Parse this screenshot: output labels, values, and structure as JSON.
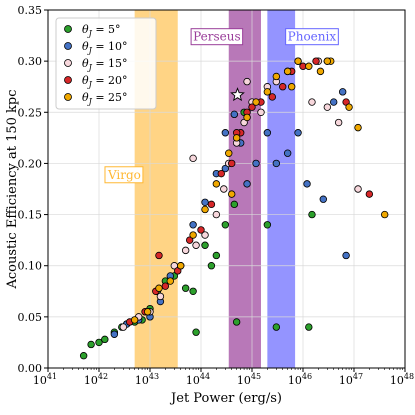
{
  "chart_data": {
    "type": "scatter",
    "xlabel": "Jet Power (erg/s)",
    "ylabel": "Acoustic Efficiency at 150 kpc",
    "x_scale": "log",
    "xlim": [
      1e+41,
      1e+48
    ],
    "ylim": [
      0.0,
      0.35
    ],
    "x_ticks": [
      {
        "value": 1e+41,
        "base": "10",
        "exp": "41"
      },
      {
        "value": 1e+42,
        "base": "10",
        "exp": "42"
      },
      {
        "value": 1e+43,
        "base": "10",
        "exp": "43"
      },
      {
        "value": 1e+44,
        "base": "10",
        "exp": "44"
      },
      {
        "value": 1e+45,
        "base": "10",
        "exp": "45"
      },
      {
        "value": 1e+46,
        "base": "10",
        "exp": "46"
      },
      {
        "value": 1e+47,
        "base": "10",
        "exp": "47"
      },
      {
        "value": 1e+48,
        "base": "10",
        "exp": "48"
      }
    ],
    "y_ticks": [
      {
        "value": 0.0,
        "label": "0.00"
      },
      {
        "value": 0.05,
        "label": "0.05"
      },
      {
        "value": 0.1,
        "label": "0.10"
      },
      {
        "value": 0.15,
        "label": "0.15"
      },
      {
        "value": 0.2,
        "label": "0.20"
      },
      {
        "value": 0.25,
        "label": "0.25"
      },
      {
        "value": 0.3,
        "label": "0.30"
      },
      {
        "value": 0.35,
        "label": "0.35"
      }
    ],
    "grid": true,
    "legend_position": "top-left",
    "bands": [
      {
        "name": "Virgo",
        "x_range": [
          5e+42,
          3.5e+43
        ],
        "color": "#ffb833",
        "opacity": 0.6,
        "label_x": 1.5e+42,
        "label_y": 0.185
      },
      {
        "name": "Perseus",
        "x_range": [
          3.5e+44,
          1.5e+45
        ],
        "color": "#9a3e9a",
        "opacity": 0.7,
        "label_x": 7e+43,
        "label_y": 0.32
      },
      {
        "name": "Phoenix",
        "x_range": [
          2e+45,
          7e+45
        ],
        "color": "#6666ff",
        "opacity": 0.7,
        "label_x": 5e+45,
        "label_y": 0.32
      }
    ],
    "star_marker": {
      "x": 5.2e+44,
      "y": 0.267
    },
    "series": [
      {
        "name": "θ_J = 5°",
        "label_text": "J",
        "label_sub": "= 5°",
        "color": "#2ca02c",
        "points": [
          [
            5e+41,
            0.012
          ],
          [
            7e+41,
            0.023
          ],
          [
            1e+42,
            0.025
          ],
          [
            1.3e+42,
            0.028
          ],
          [
            2e+42,
            0.035
          ],
          [
            2.8e+42,
            0.04
          ],
          [
            3.5e+42,
            0.043
          ],
          [
            5e+42,
            0.045
          ],
          [
            7e+42,
            0.047
          ],
          [
            1e+43,
            0.058
          ],
          [
            1.4e+43,
            0.075
          ],
          [
            2e+43,
            0.085
          ],
          [
            3e+43,
            0.09
          ],
          [
            5e+43,
            0.078
          ],
          [
            7e+43,
            0.075
          ],
          [
            1.2e+44,
            0.12
          ],
          [
            1.6e+44,
            0.1
          ],
          [
            2e+44,
            0.11
          ],
          [
            3e+44,
            0.14
          ],
          [
            4.5e+44,
            0.16
          ],
          [
            5e+44,
            0.045
          ],
          [
            7e+44,
            0.25
          ],
          [
            2e+45,
            0.14
          ],
          [
            3e+45,
            0.04
          ],
          [
            1.3e+46,
            0.04
          ],
          [
            1.5e+46,
            0.15
          ],
          [
            8e+43,
            0.035
          ]
        ]
      },
      {
        "name": "θ_J = 10°",
        "label_text": "J",
        "label_sub": "= 10°",
        "color": "#4472c4",
        "points": [
          [
            2e+42,
            0.033
          ],
          [
            3.5e+42,
            0.043
          ],
          [
            6e+42,
            0.047
          ],
          [
            1e+43,
            0.05
          ],
          [
            1.6e+43,
            0.065
          ],
          [
            2.5e+43,
            0.09
          ],
          [
            4e+43,
            0.1
          ],
          [
            7e+43,
            0.14
          ],
          [
            1.2e+44,
            0.162
          ],
          [
            2e+44,
            0.19
          ],
          [
            3e+44,
            0.23
          ],
          [
            4.5e+44,
            0.248
          ],
          [
            6e+44,
            0.22
          ],
          [
            8e+44,
            0.18
          ],
          [
            1.2e+45,
            0.2
          ],
          [
            2e+45,
            0.23
          ],
          [
            3e+45,
            0.2
          ],
          [
            5e+45,
            0.21
          ],
          [
            8e+45,
            0.23
          ],
          [
            1.2e+46,
            0.18
          ],
          [
            2.5e+46,
            0.165
          ],
          [
            4e+46,
            0.26
          ],
          [
            6e+46,
            0.27
          ],
          [
            3e+44,
            0.195
          ],
          [
            7e+46,
            0.11
          ]
        ]
      },
      {
        "name": "θ_J = 15°",
        "label_text": "J",
        "label_sub": "= 15°",
        "color": "#f7d7dc",
        "points": [
          [
            3e+42,
            0.04
          ],
          [
            6e+42,
            0.05
          ],
          [
            1e+43,
            0.055
          ],
          [
            1.6e+43,
            0.07
          ],
          [
            3e+43,
            0.1
          ],
          [
            5e+43,
            0.115
          ],
          [
            8e+43,
            0.12
          ],
          [
            1.2e+44,
            0.13
          ],
          [
            2e+44,
            0.15
          ],
          [
            2.8e+44,
            0.175
          ],
          [
            3.5e+44,
            0.2
          ],
          [
            5e+44,
            0.22
          ],
          [
            7e+44,
            0.24
          ],
          [
            1e+45,
            0.26
          ],
          [
            1.5e+45,
            0.25
          ],
          [
            2e+45,
            0.275
          ],
          [
            3e+45,
            0.28
          ],
          [
            5e+45,
            0.29
          ],
          [
            8e+45,
            0.3
          ],
          [
            1.5e+46,
            0.26
          ],
          [
            2e+46,
            0.3
          ],
          [
            3e+46,
            0.255
          ],
          [
            5e+46,
            0.24
          ],
          [
            1.2e+47,
            0.175
          ],
          [
            7e+43,
            0.205
          ],
          [
            8e+44,
            0.28
          ]
        ]
      },
      {
        "name": "θ_J = 20°",
        "label_text": "J",
        "label_sub": "= 20°",
        "color": "#d62728",
        "points": [
          [
            4e+42,
            0.045
          ],
          [
            8e+42,
            0.055
          ],
          [
            1.3e+43,
            0.075
          ],
          [
            2e+43,
            0.08
          ],
          [
            3.5e+43,
            0.095
          ],
          [
            6e+43,
            0.125
          ],
          [
            1e+44,
            0.135
          ],
          [
            1.6e+44,
            0.16
          ],
          [
            2.5e+44,
            0.19
          ],
          [
            4e+44,
            0.2
          ],
          [
            6e+44,
            0.23
          ],
          [
            8e+44,
            0.25
          ],
          [
            1e+45,
            0.255
          ],
          [
            1.5e+45,
            0.26
          ],
          [
            2.5e+45,
            0.265
          ],
          [
            4e+45,
            0.275
          ],
          [
            6e+45,
            0.29
          ],
          [
            1e+46,
            0.295
          ],
          [
            1.8e+46,
            0.3
          ],
          [
            3e+46,
            0.3
          ],
          [
            7e+46,
            0.26
          ],
          [
            2e+47,
            0.17
          ],
          [
            1.5e+43,
            0.11
          ],
          [
            5e+44,
            0.23
          ]
        ]
      },
      {
        "name": "θ_J = 25°",
        "label_text": "J",
        "label_sub": "= 25°",
        "color": "#f0a800",
        "points": [
          [
            5e+42,
            0.047
          ],
          [
            9e+42,
            0.055
          ],
          [
            1.5e+43,
            0.078
          ],
          [
            2.5e+43,
            0.085
          ],
          [
            4e+43,
            0.1
          ],
          [
            7e+43,
            0.13
          ],
          [
            1.2e+44,
            0.155
          ],
          [
            2e+44,
            0.18
          ],
          [
            3.5e+44,
            0.21
          ],
          [
            5e+44,
            0.225
          ],
          [
            8e+44,
            0.245
          ],
          [
            1.2e+45,
            0.26
          ],
          [
            2e+45,
            0.27
          ],
          [
            3e+45,
            0.285
          ],
          [
            5e+45,
            0.29
          ],
          [
            8e+45,
            0.3
          ],
          [
            1.3e+46,
            0.295
          ],
          [
            2.2e+46,
            0.29
          ],
          [
            3.5e+46,
            0.3
          ],
          [
            8e+46,
            0.255
          ],
          [
            1.2e+47,
            0.235
          ],
          [
            4e+47,
            0.15
          ],
          [
            4e+44,
            0.17
          ],
          [
            6e+45,
            0.275
          ],
          [
            3e+46,
            0.3
          ]
        ]
      }
    ]
  }
}
